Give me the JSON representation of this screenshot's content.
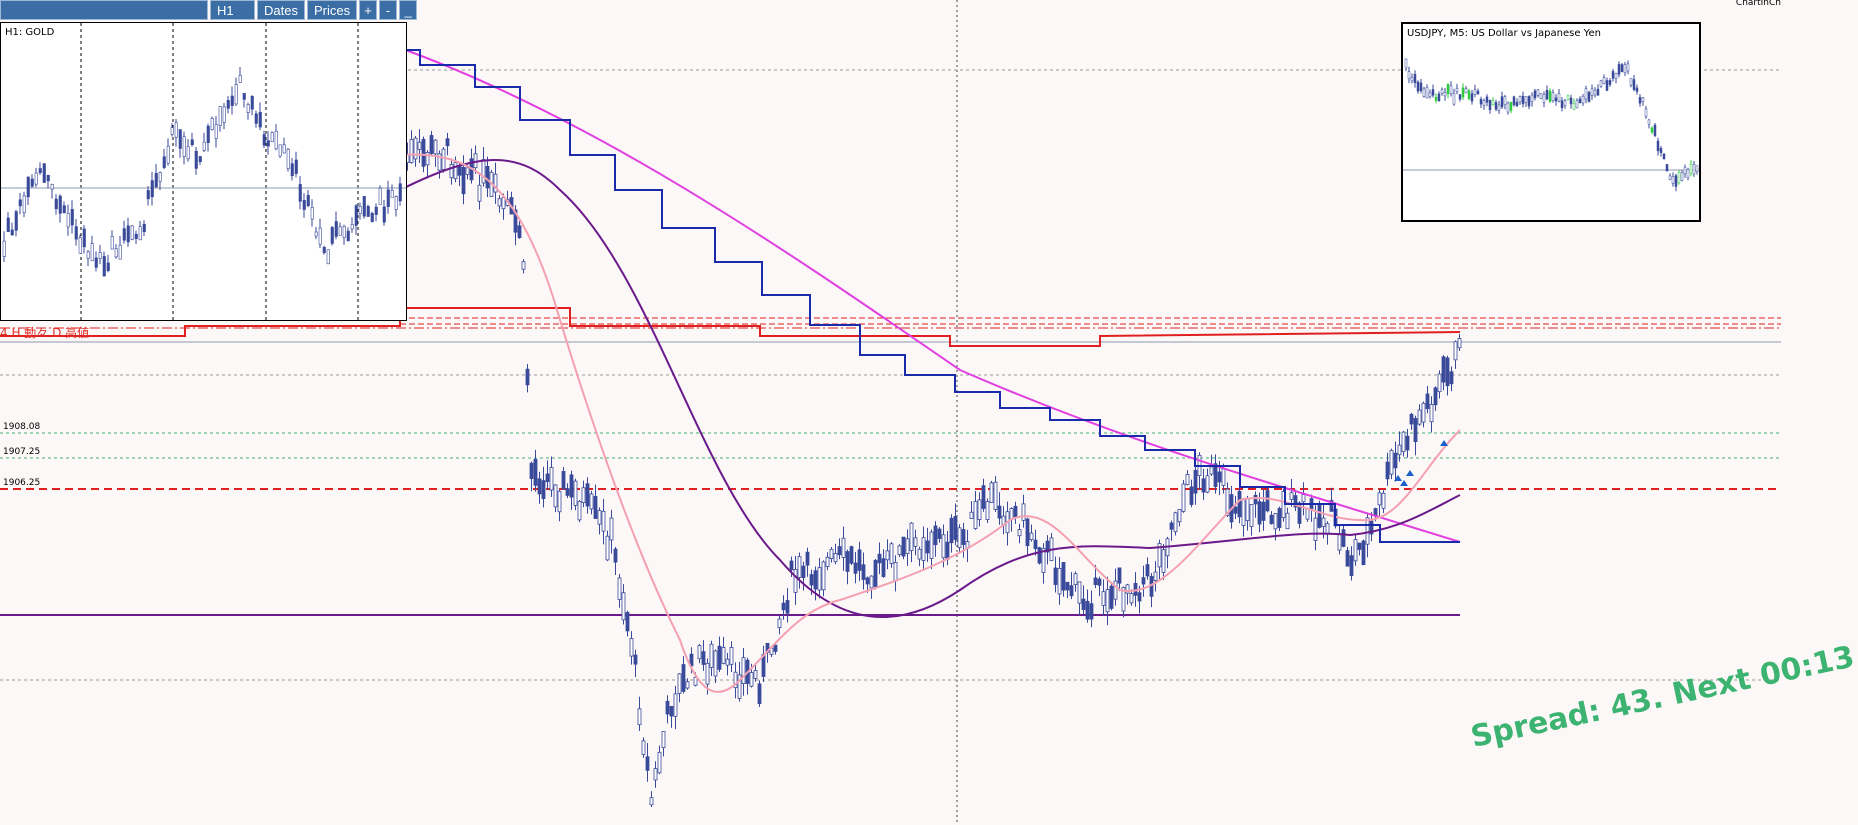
{
  "toolbar": {
    "timeframe": "H1",
    "dates_label": "Dates",
    "prices_label": "Prices",
    "zoom_in": "+",
    "zoom_out": "-",
    "minimize": "_"
  },
  "main_chart": {
    "corner_label": "ChartInCh",
    "price_levels": [
      "1908.08",
      "1907.25",
      "1906.25"
    ],
    "annotation": "4 H 動々 D 高値"
  },
  "mini_chart_gold": {
    "title": "H1: GOLD"
  },
  "mini_chart_usdjpy": {
    "title": "USDJPY, M5: US Dollar vs Japanese Yen"
  },
  "status": {
    "spread_text": "Spread: 43. Next 00:13"
  },
  "colors": {
    "background": "#fdf8f8",
    "candle": "#3a4a9a",
    "ma_magenta": "#e040e0",
    "ma_purple": "#6a1a8a",
    "step_blue": "#1a2aa8",
    "ma_pink": "#f4a0b0",
    "resistance_red": "#e02020",
    "spread_green": "#3cb371"
  }
}
